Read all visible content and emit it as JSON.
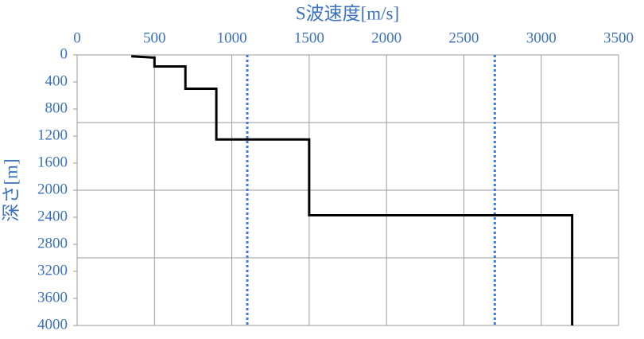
{
  "chart_data": {
    "type": "line",
    "x_label": "S波速度[m/s]",
    "y_label": "深さ[m]",
    "series": [
      {
        "x": [
          350,
          500,
          500,
          700,
          700,
          900,
          900,
          1500,
          1500,
          3200,
          3200
        ],
        "values": [
          20,
          40,
          170,
          170,
          500,
          500,
          1250,
          1250,
          2370,
          2370,
          4000
        ],
        "color": "#000000"
      }
    ],
    "reference_x": [
      1100,
      2700
    ],
    "reference_color": "#3b78d8",
    "xlim": [
      0,
      3500
    ],
    "xticks": [
      0,
      500,
      1000,
      1500,
      2000,
      2500,
      3000,
      3500
    ],
    "ylim": [
      0,
      4000
    ],
    "yticks": [
      0,
      400,
      800,
      1200,
      1600,
      2000,
      2400,
      2800,
      3200,
      3600,
      4000
    ],
    "ygrid": [
      1000,
      2000,
      3000,
      4000
    ],
    "y_inverted": true,
    "x_axis_position": "top",
    "grid": true,
    "label_color": "#3a72c0"
  }
}
